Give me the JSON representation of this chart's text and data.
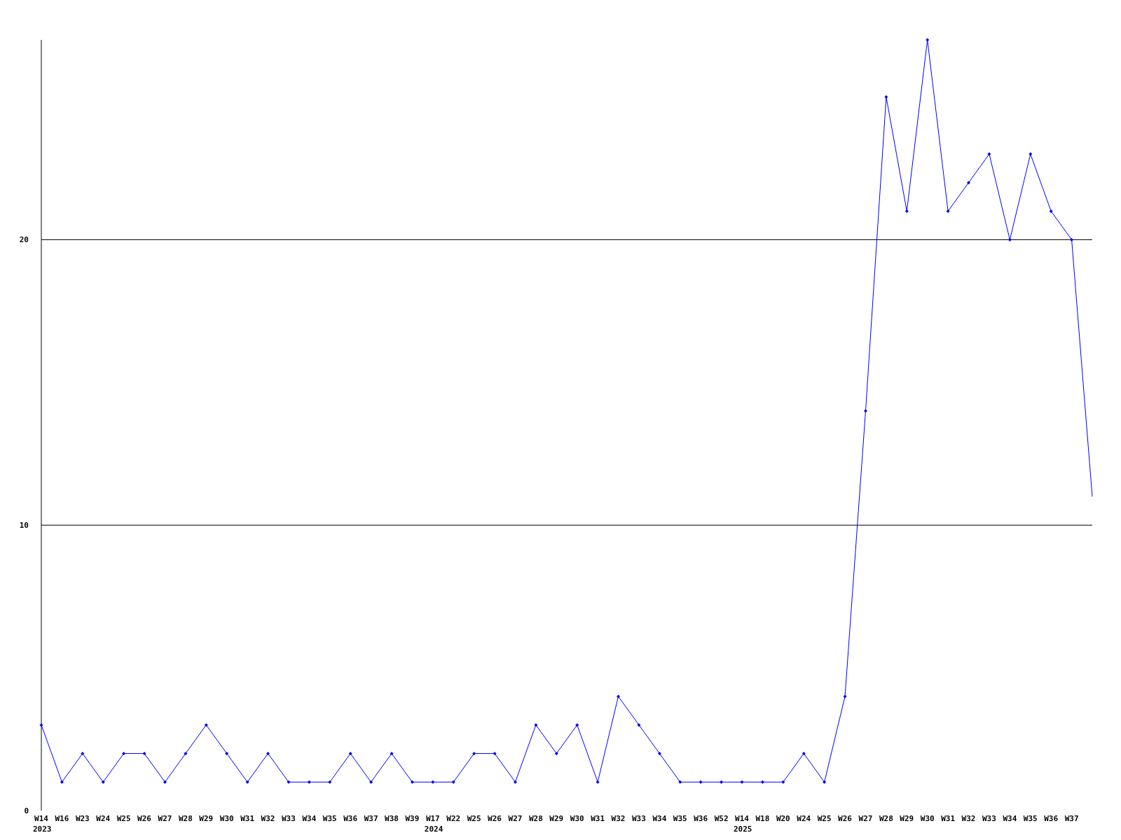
{
  "chart_data": {
    "type": "line",
    "categories": [
      "W14\n2023",
      "W16",
      "W23",
      "W24",
      "W25",
      "W26",
      "W27",
      "W28",
      "W29",
      "W30",
      "W31",
      "W32",
      "W33",
      "W34",
      "W35",
      "W36",
      "W37",
      "W38",
      "W39",
      "W17\n2024",
      "W22",
      "W25",
      "W26",
      "W27",
      "W28",
      "W29",
      "W30",
      "W31",
      "W32",
      "W33",
      "W34",
      "W35",
      "W36",
      "W52",
      "W14\n2025",
      "W18",
      "W20",
      "W24",
      "W25",
      "W26",
      "W27",
      "W28",
      "W29",
      "W30",
      "W31",
      "W32",
      "W33",
      "W34",
      "W35",
      "W36",
      "W37",
      null
    ],
    "series": [
      {
        "color": "#0000ff",
        "values": [
          3,
          1,
          2,
          1,
          2,
          2,
          1,
          2,
          3,
          2,
          1,
          2,
          1,
          1,
          1,
          2,
          1,
          2,
          1,
          1,
          1,
          2,
          2,
          1,
          3,
          2,
          3,
          1,
          4,
          3,
          2,
          1,
          1,
          1,
          1,
          1,
          1,
          2,
          1,
          4,
          14,
          25,
          21,
          27,
          21,
          22,
          23,
          20,
          23,
          21,
          20,
          11
        ]
      }
    ],
    "ylim": [
      0,
      27
    ],
    "yticks": [
      0,
      10,
      20
    ],
    "grid": "y",
    "marker": "diamond"
  }
}
